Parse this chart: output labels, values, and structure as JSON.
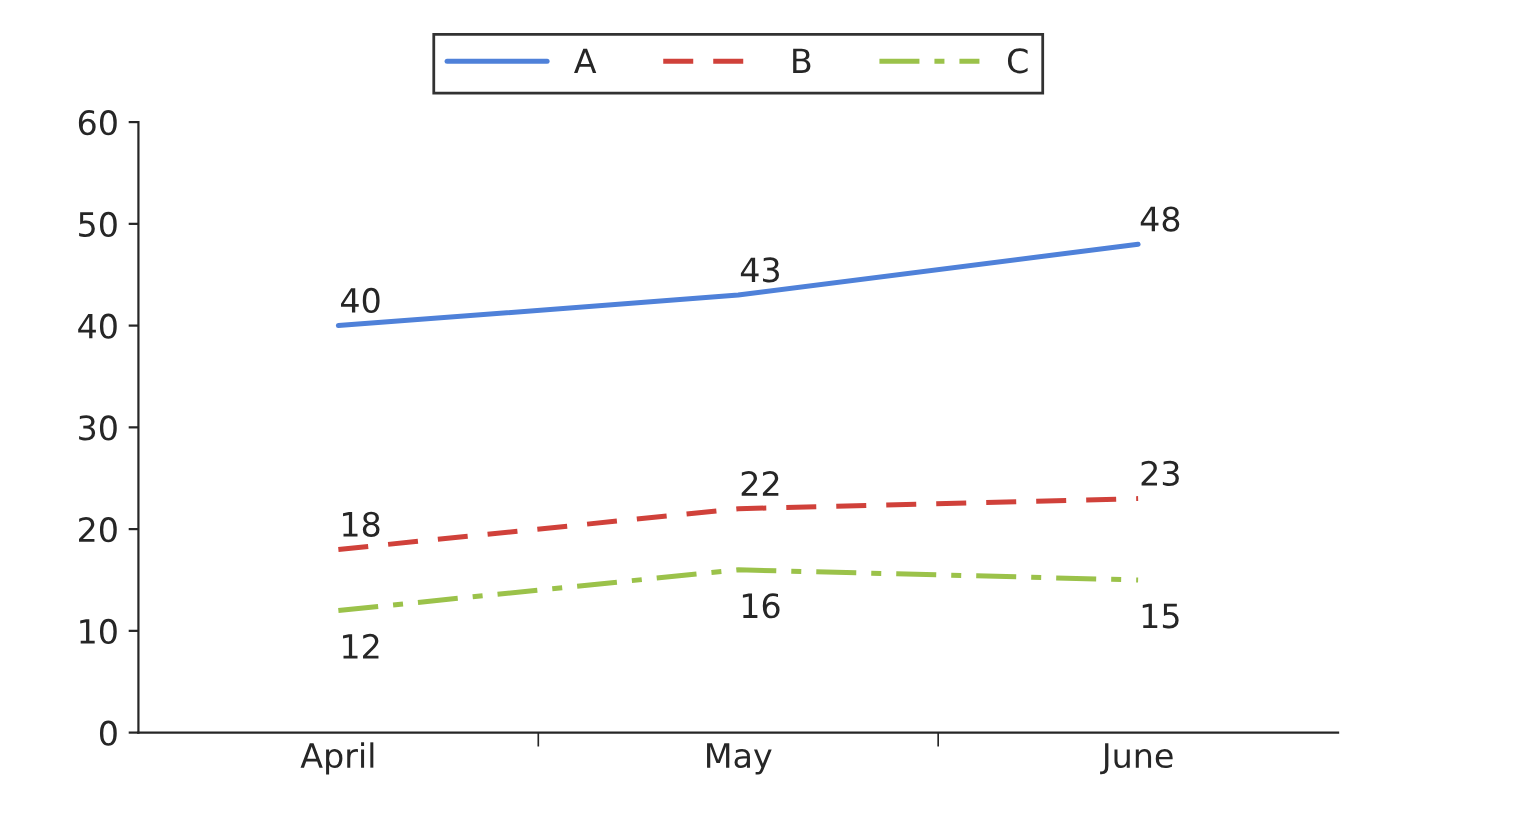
{
  "chart_data": {
    "type": "line",
    "categories": [
      "April",
      "May",
      "June"
    ],
    "series": [
      {
        "name": "A",
        "color": "#4f81d9",
        "values": [
          40,
          43,
          48
        ],
        "line_style": "solid"
      },
      {
        "name": "B",
        "color": "#d0413a",
        "values": [
          18,
          22,
          23
        ],
        "line_style": "dashed"
      },
      {
        "name": "C",
        "color": "#9bc24a",
        "values": [
          12,
          16,
          15
        ],
        "line_style": "dashdot"
      }
    ],
    "ylim": [
      0,
      60
    ],
    "yticks": [
      0,
      10,
      20,
      30,
      40,
      50,
      60
    ],
    "grid": false,
    "legend": "top",
    "data_labels": true,
    "marker": "none"
  }
}
